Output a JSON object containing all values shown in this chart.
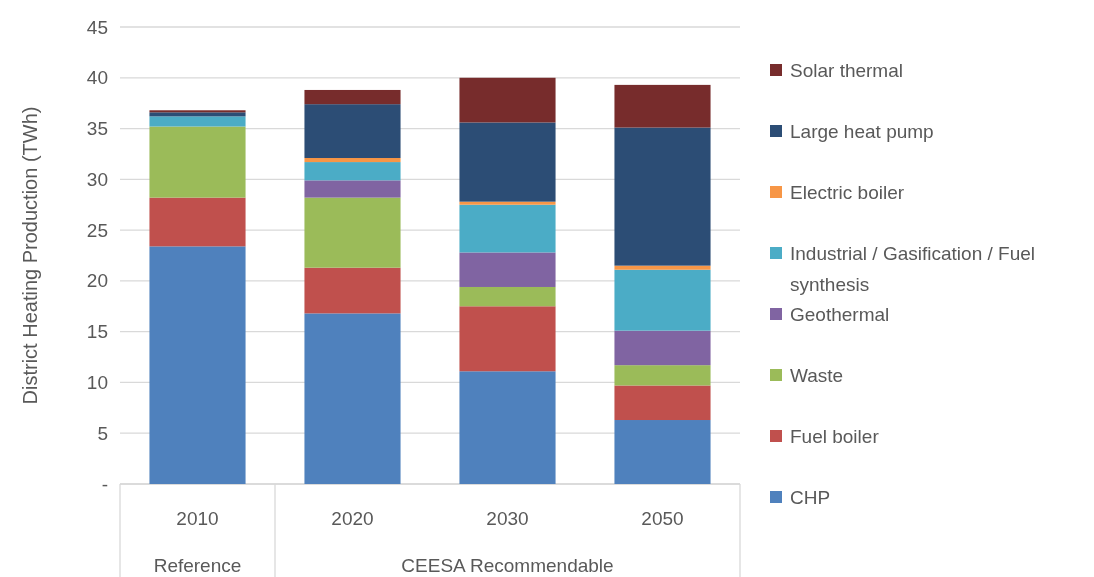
{
  "chart_data": {
    "type": "bar",
    "stacked": true,
    "ylabel": "District Heating Production (TWh)",
    "categories": [
      "2010",
      "2020",
      "2030",
      "2050"
    ],
    "series": [
      {
        "name": "CHP",
        "color": "#4f81bd",
        "values": [
          23.4,
          16.8,
          11.1,
          6.3
        ]
      },
      {
        "name": "Fuel boiler",
        "color": "#c0504d",
        "values": [
          4.8,
          4.5,
          6.4,
          3.4
        ]
      },
      {
        "name": "Waste",
        "color": "#9bbb59",
        "values": [
          7.0,
          6.9,
          1.9,
          2.0
        ]
      },
      {
        "name": "Geothermal",
        "color": "#8064a2",
        "values": [
          0,
          1.7,
          3.4,
          3.4
        ]
      },
      {
        "name": "Industrial / Gasification / Fuel synthesis",
        "color": "#4bacc6",
        "values": [
          1.0,
          1.8,
          4.7,
          6.0
        ]
      },
      {
        "name": "Electric boiler",
        "color": "#f79646",
        "values": [
          0,
          0.4,
          0.3,
          0.4
        ]
      },
      {
        "name": "Large heat pump",
        "color": "#2c4d75",
        "values": [
          0.4,
          5.3,
          7.8,
          13.6
        ]
      },
      {
        "name": "Solar thermal",
        "color": "#772c2c",
        "values": [
          0.2,
          1.4,
          4.4,
          4.2
        ]
      }
    ],
    "ylim": [
      0,
      45
    ],
    "yticks": [
      {
        "value": 0,
        "label": "-"
      },
      5,
      10,
      15,
      20,
      25,
      30,
      35,
      40,
      45
    ],
    "grid": "y",
    "legend": "right",
    "annotations": [
      "Reference",
      "CEESA Recommendable"
    ]
  }
}
